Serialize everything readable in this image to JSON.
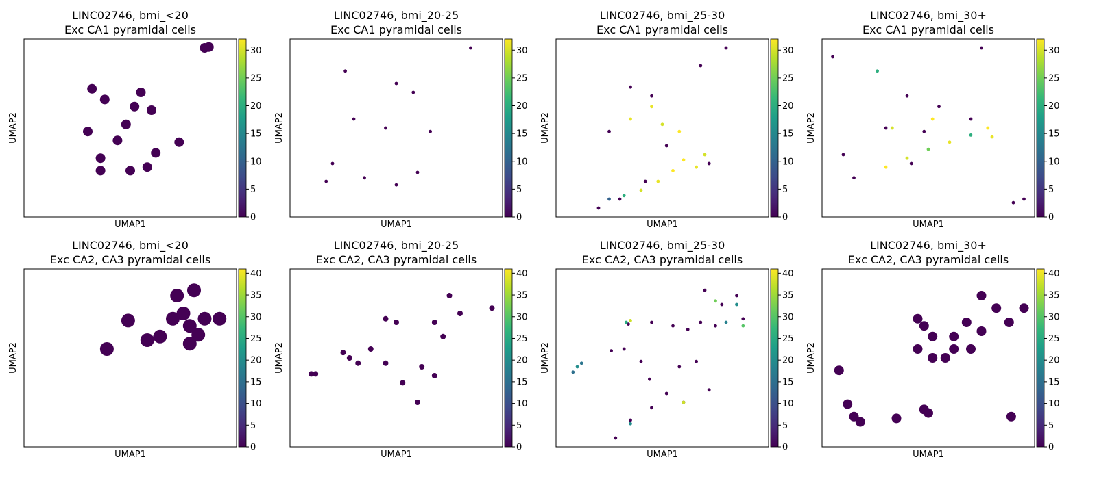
{
  "chart_data": [
    {
      "type": "scatter",
      "row": 0,
      "col": 0,
      "title_line1": "LINC02746, bmi_<20",
      "title_line2": "Exc CA1 pyramidal cells",
      "xlabel": "UMAP1",
      "ylabel": "UMAP2",
      "colorbar": {
        "min": 0,
        "max": 32,
        "ticks": [
          0,
          5,
          10,
          15,
          20,
          25,
          30
        ]
      },
      "point_size": "large",
      "points": [
        {
          "x": 0.85,
          "y": 0.95,
          "v": 0
        },
        {
          "x": 0.87,
          "y": 0.955,
          "v": 0
        },
        {
          "x": 0.32,
          "y": 0.72,
          "v": 0
        },
        {
          "x": 0.38,
          "y": 0.66,
          "v": 0
        },
        {
          "x": 0.52,
          "y": 0.62,
          "v": 0
        },
        {
          "x": 0.55,
          "y": 0.7,
          "v": 0
        },
        {
          "x": 0.6,
          "y": 0.6,
          "v": 0
        },
        {
          "x": 0.48,
          "y": 0.52,
          "v": 0
        },
        {
          "x": 0.3,
          "y": 0.48,
          "v": 0
        },
        {
          "x": 0.44,
          "y": 0.43,
          "v": 0
        },
        {
          "x": 0.62,
          "y": 0.36,
          "v": 0
        },
        {
          "x": 0.73,
          "y": 0.42,
          "v": 0
        },
        {
          "x": 0.36,
          "y": 0.33,
          "v": 0
        },
        {
          "x": 0.58,
          "y": 0.28,
          "v": 0
        },
        {
          "x": 0.5,
          "y": 0.26,
          "v": 0
        },
        {
          "x": 0.36,
          "y": 0.26,
          "v": 0
        }
      ]
    },
    {
      "type": "scatter",
      "row": 0,
      "col": 1,
      "title_line1": "LINC02746, bmi_20-25",
      "title_line2": "Exc CA1 pyramidal cells",
      "xlabel": "UMAP1",
      "ylabel": "UMAP2",
      "colorbar": {
        "min": 0,
        "max": 32,
        "ticks": [
          0,
          5,
          10,
          15,
          20,
          25,
          30
        ]
      },
      "point_size": "small",
      "points": [
        {
          "x": 0.85,
          "y": 0.95,
          "v": 0
        },
        {
          "x": 0.26,
          "y": 0.82,
          "v": 0
        },
        {
          "x": 0.5,
          "y": 0.75,
          "v": 0
        },
        {
          "x": 0.58,
          "y": 0.7,
          "v": 0
        },
        {
          "x": 0.3,
          "y": 0.55,
          "v": 0
        },
        {
          "x": 0.45,
          "y": 0.5,
          "v": 0
        },
        {
          "x": 0.66,
          "y": 0.48,
          "v": 0
        },
        {
          "x": 0.2,
          "y": 0.3,
          "v": 0
        },
        {
          "x": 0.35,
          "y": 0.22,
          "v": 0
        },
        {
          "x": 0.5,
          "y": 0.18,
          "v": 0
        },
        {
          "x": 0.6,
          "y": 0.25,
          "v": 0
        },
        {
          "x": 0.17,
          "y": 0.2,
          "v": 0
        }
      ]
    },
    {
      "type": "scatter",
      "row": 0,
      "col": 2,
      "title_line1": "LINC02746, bmi_25-30",
      "title_line2": "Exc CA1 pyramidal cells",
      "xlabel": "UMAP1",
      "ylabel": "UMAP2",
      "colorbar": {
        "min": 0,
        "max": 32,
        "ticks": [
          0,
          5,
          10,
          15,
          20,
          25,
          30
        ]
      },
      "point_size": "small",
      "points": [
        {
          "x": 0.8,
          "y": 0.95,
          "v": 0
        },
        {
          "x": 0.68,
          "y": 0.85,
          "v": 0
        },
        {
          "x": 0.35,
          "y": 0.73,
          "v": 0
        },
        {
          "x": 0.45,
          "y": 0.68,
          "v": 0
        },
        {
          "x": 0.25,
          "y": 0.48,
          "v": 0
        },
        {
          "x": 0.52,
          "y": 0.4,
          "v": 0
        },
        {
          "x": 0.72,
          "y": 0.3,
          "v": 0
        },
        {
          "x": 0.42,
          "y": 0.2,
          "v": 0
        },
        {
          "x": 0.3,
          "y": 0.1,
          "v": 0
        },
        {
          "x": 0.2,
          "y": 0.05,
          "v": 0
        },
        {
          "x": 0.6,
          "y": 0.32,
          "v": 32
        },
        {
          "x": 0.66,
          "y": 0.28,
          "v": 31
        },
        {
          "x": 0.7,
          "y": 0.35,
          "v": 30
        },
        {
          "x": 0.55,
          "y": 0.26,
          "v": 32
        },
        {
          "x": 0.48,
          "y": 0.2,
          "v": 31
        },
        {
          "x": 0.4,
          "y": 0.15,
          "v": 30
        },
        {
          "x": 0.35,
          "y": 0.55,
          "v": 31
        },
        {
          "x": 0.5,
          "y": 0.52,
          "v": 30
        },
        {
          "x": 0.45,
          "y": 0.62,
          "v": 31
        },
        {
          "x": 0.58,
          "y": 0.48,
          "v": 32
        },
        {
          "x": 0.25,
          "y": 0.1,
          "v": 10
        },
        {
          "x": 0.32,
          "y": 0.12,
          "v": 20
        }
      ]
    },
    {
      "type": "scatter",
      "row": 0,
      "col": 3,
      "title_line1": "LINC02746, bmi_30+",
      "title_line2": "Exc CA1 pyramidal cells",
      "xlabel": "UMAP1",
      "ylabel": "UMAP2",
      "colorbar": {
        "min": 0,
        "max": 32,
        "ticks": [
          0,
          5,
          10,
          15,
          20,
          25,
          30
        ]
      },
      "point_size": "small",
      "points": [
        {
          "x": 0.05,
          "y": 0.9,
          "v": 0
        },
        {
          "x": 0.26,
          "y": 0.82,
          "v": 20
        },
        {
          "x": 0.75,
          "y": 0.95,
          "v": 0
        },
        {
          "x": 0.4,
          "y": 0.68,
          "v": 0
        },
        {
          "x": 0.55,
          "y": 0.62,
          "v": 0
        },
        {
          "x": 0.3,
          "y": 0.5,
          "v": 0
        },
        {
          "x": 0.48,
          "y": 0.48,
          "v": 0
        },
        {
          "x": 0.7,
          "y": 0.55,
          "v": 0
        },
        {
          "x": 0.1,
          "y": 0.35,
          "v": 0
        },
        {
          "x": 0.15,
          "y": 0.22,
          "v": 0
        },
        {
          "x": 0.42,
          "y": 0.3,
          "v": 0
        },
        {
          "x": 0.9,
          "y": 0.08,
          "v": 0
        },
        {
          "x": 0.95,
          "y": 0.1,
          "v": 0
        },
        {
          "x": 0.3,
          "y": 0.28,
          "v": 32
        },
        {
          "x": 0.4,
          "y": 0.33,
          "v": 30
        },
        {
          "x": 0.5,
          "y": 0.38,
          "v": 25
        },
        {
          "x": 0.6,
          "y": 0.42,
          "v": 31
        },
        {
          "x": 0.7,
          "y": 0.46,
          "v": 20
        },
        {
          "x": 0.78,
          "y": 0.5,
          "v": 32
        },
        {
          "x": 0.8,
          "y": 0.45,
          "v": 31
        },
        {
          "x": 0.52,
          "y": 0.55,
          "v": 32
        },
        {
          "x": 0.33,
          "y": 0.5,
          "v": 30
        }
      ]
    },
    {
      "type": "scatter",
      "row": 1,
      "col": 0,
      "title_line1": "LINC02746, bmi_<20",
      "title_line2": "Exc CA2, CA3 pyramidal cells",
      "xlabel": "UMAP1",
      "ylabel": "UMAP2",
      "colorbar": {
        "min": 0,
        "max": 41,
        "ticks": [
          0,
          5,
          10,
          15,
          20,
          25,
          30,
          35,
          40
        ]
      },
      "point_size": "xlarge",
      "points": [
        {
          "x": 0.72,
          "y": 0.85,
          "v": 0
        },
        {
          "x": 0.8,
          "y": 0.88,
          "v": 0
        },
        {
          "x": 0.75,
          "y": 0.75,
          "v": 0
        },
        {
          "x": 0.7,
          "y": 0.72,
          "v": 0
        },
        {
          "x": 0.78,
          "y": 0.68,
          "v": 0
        },
        {
          "x": 0.85,
          "y": 0.72,
          "v": 0
        },
        {
          "x": 0.92,
          "y": 0.72,
          "v": 0
        },
        {
          "x": 0.49,
          "y": 0.71,
          "v": 0
        },
        {
          "x": 0.64,
          "y": 0.62,
          "v": 0
        },
        {
          "x": 0.58,
          "y": 0.6,
          "v": 0
        },
        {
          "x": 0.82,
          "y": 0.63,
          "v": 0
        },
        {
          "x": 0.78,
          "y": 0.58,
          "v": 0
        },
        {
          "x": 0.39,
          "y": 0.55,
          "v": 0
        }
      ]
    },
    {
      "type": "scatter",
      "row": 1,
      "col": 1,
      "title_line1": "LINC02746, bmi_20-25",
      "title_line2": "Exc CA2, CA3 pyramidal cells",
      "xlabel": "UMAP1",
      "ylabel": "UMAP2",
      "colorbar": {
        "min": 0,
        "max": 41,
        "ticks": [
          0,
          5,
          10,
          15,
          20,
          25,
          30,
          35,
          40
        ]
      },
      "point_size": "medium",
      "points": [
        {
          "x": 0.75,
          "y": 0.85,
          "v": 0
        },
        {
          "x": 0.8,
          "y": 0.75,
          "v": 0
        },
        {
          "x": 0.68,
          "y": 0.7,
          "v": 0
        },
        {
          "x": 0.72,
          "y": 0.62,
          "v": 0
        },
        {
          "x": 0.95,
          "y": 0.78,
          "v": 0
        },
        {
          "x": 0.45,
          "y": 0.72,
          "v": 0
        },
        {
          "x": 0.5,
          "y": 0.7,
          "v": 0
        },
        {
          "x": 0.25,
          "y": 0.53,
          "v": 0
        },
        {
          "x": 0.28,
          "y": 0.5,
          "v": 0
        },
        {
          "x": 0.38,
          "y": 0.55,
          "v": 0
        },
        {
          "x": 0.45,
          "y": 0.47,
          "v": 0
        },
        {
          "x": 0.32,
          "y": 0.47,
          "v": 0
        },
        {
          "x": 0.1,
          "y": 0.41,
          "v": 0
        },
        {
          "x": 0.12,
          "y": 0.41,
          "v": 0
        },
        {
          "x": 0.68,
          "y": 0.4,
          "v": 0
        },
        {
          "x": 0.53,
          "y": 0.36,
          "v": 0
        },
        {
          "x": 0.62,
          "y": 0.45,
          "v": 0
        },
        {
          "x": 0.6,
          "y": 0.25,
          "v": 0
        }
      ]
    },
    {
      "type": "scatter",
      "row": 1,
      "col": 2,
      "title_line1": "LINC02746, bmi_25-30",
      "title_line2": "Exc CA2, CA3 pyramidal cells",
      "xlabel": "UMAP1",
      "ylabel": "UMAP2",
      "colorbar": {
        "min": 0,
        "max": 41,
        "ticks": [
          0,
          5,
          10,
          15,
          20,
          25,
          30,
          35,
          40
        ]
      },
      "point_size": "small",
      "points": [
        {
          "x": 0.7,
          "y": 0.88,
          "v": 0
        },
        {
          "x": 0.78,
          "y": 0.8,
          "v": 0
        },
        {
          "x": 0.85,
          "y": 0.85,
          "v": 0
        },
        {
          "x": 0.68,
          "y": 0.7,
          "v": 0
        },
        {
          "x": 0.75,
          "y": 0.68,
          "v": 0
        },
        {
          "x": 0.62,
          "y": 0.66,
          "v": 0
        },
        {
          "x": 0.55,
          "y": 0.68,
          "v": 0
        },
        {
          "x": 0.88,
          "y": 0.72,
          "v": 0
        },
        {
          "x": 0.34,
          "y": 0.69,
          "v": 0
        },
        {
          "x": 0.45,
          "y": 0.7,
          "v": 0
        },
        {
          "x": 0.26,
          "y": 0.54,
          "v": 0
        },
        {
          "x": 0.32,
          "y": 0.55,
          "v": 0
        },
        {
          "x": 0.4,
          "y": 0.48,
          "v": 0
        },
        {
          "x": 0.58,
          "y": 0.45,
          "v": 0
        },
        {
          "x": 0.66,
          "y": 0.48,
          "v": 0
        },
        {
          "x": 0.44,
          "y": 0.38,
          "v": 0
        },
        {
          "x": 0.52,
          "y": 0.3,
          "v": 0
        },
        {
          "x": 0.6,
          "y": 0.25,
          "v": 0
        },
        {
          "x": 0.72,
          "y": 0.32,
          "v": 0
        },
        {
          "x": 0.45,
          "y": 0.22,
          "v": 0
        },
        {
          "x": 0.35,
          "y": 0.15,
          "v": 0
        },
        {
          "x": 0.28,
          "y": 0.05,
          "v": 0
        },
        {
          "x": 0.75,
          "y": 0.82,
          "v": 32
        },
        {
          "x": 0.85,
          "y": 0.8,
          "v": 20
        },
        {
          "x": 0.8,
          "y": 0.7,
          "v": 18
        },
        {
          "x": 0.88,
          "y": 0.68,
          "v": 30
        },
        {
          "x": 0.33,
          "y": 0.7,
          "v": 25
        },
        {
          "x": 0.35,
          "y": 0.71,
          "v": 38
        },
        {
          "x": 0.08,
          "y": 0.42,
          "v": 15
        },
        {
          "x": 0.1,
          "y": 0.45,
          "v": 20
        },
        {
          "x": 0.12,
          "y": 0.47,
          "v": 16
        },
        {
          "x": 0.6,
          "y": 0.25,
          "v": 38
        },
        {
          "x": 0.35,
          "y": 0.13,
          "v": 20
        }
      ]
    },
    {
      "type": "scatter",
      "row": 1,
      "col": 3,
      "title_line1": "LINC02746, bmi_30+",
      "title_line2": "Exc CA2, CA3 pyramidal cells",
      "xlabel": "UMAP1",
      "ylabel": "UMAP2",
      "colorbar": {
        "min": 0,
        "max": 41,
        "ticks": [
          0,
          5,
          10,
          15,
          20,
          25,
          30,
          35,
          40
        ]
      },
      "point_size": "large",
      "points": [
        {
          "x": 0.75,
          "y": 0.85,
          "v": 0
        },
        {
          "x": 0.82,
          "y": 0.78,
          "v": 0
        },
        {
          "x": 0.68,
          "y": 0.7,
          "v": 0
        },
        {
          "x": 0.75,
          "y": 0.65,
          "v": 0
        },
        {
          "x": 0.62,
          "y": 0.62,
          "v": 0
        },
        {
          "x": 0.88,
          "y": 0.7,
          "v": 0
        },
        {
          "x": 0.95,
          "y": 0.78,
          "v": 0
        },
        {
          "x": 0.45,
          "y": 0.72,
          "v": 0
        },
        {
          "x": 0.48,
          "y": 0.68,
          "v": 0
        },
        {
          "x": 0.52,
          "y": 0.62,
          "v": 0
        },
        {
          "x": 0.45,
          "y": 0.55,
          "v": 0
        },
        {
          "x": 0.52,
          "y": 0.5,
          "v": 0
        },
        {
          "x": 0.58,
          "y": 0.5,
          "v": 0
        },
        {
          "x": 0.62,
          "y": 0.55,
          "v": 0
        },
        {
          "x": 0.7,
          "y": 0.55,
          "v": 0
        },
        {
          "x": 0.08,
          "y": 0.43,
          "v": 0
        },
        {
          "x": 0.12,
          "y": 0.24,
          "v": 0
        },
        {
          "x": 0.15,
          "y": 0.17,
          "v": 0
        },
        {
          "x": 0.18,
          "y": 0.14,
          "v": 0
        },
        {
          "x": 0.35,
          "y": 0.16,
          "v": 0
        },
        {
          "x": 0.48,
          "y": 0.21,
          "v": 0
        },
        {
          "x": 0.5,
          "y": 0.19,
          "v": 0
        },
        {
          "x": 0.89,
          "y": 0.17,
          "v": 0
        }
      ]
    }
  ]
}
